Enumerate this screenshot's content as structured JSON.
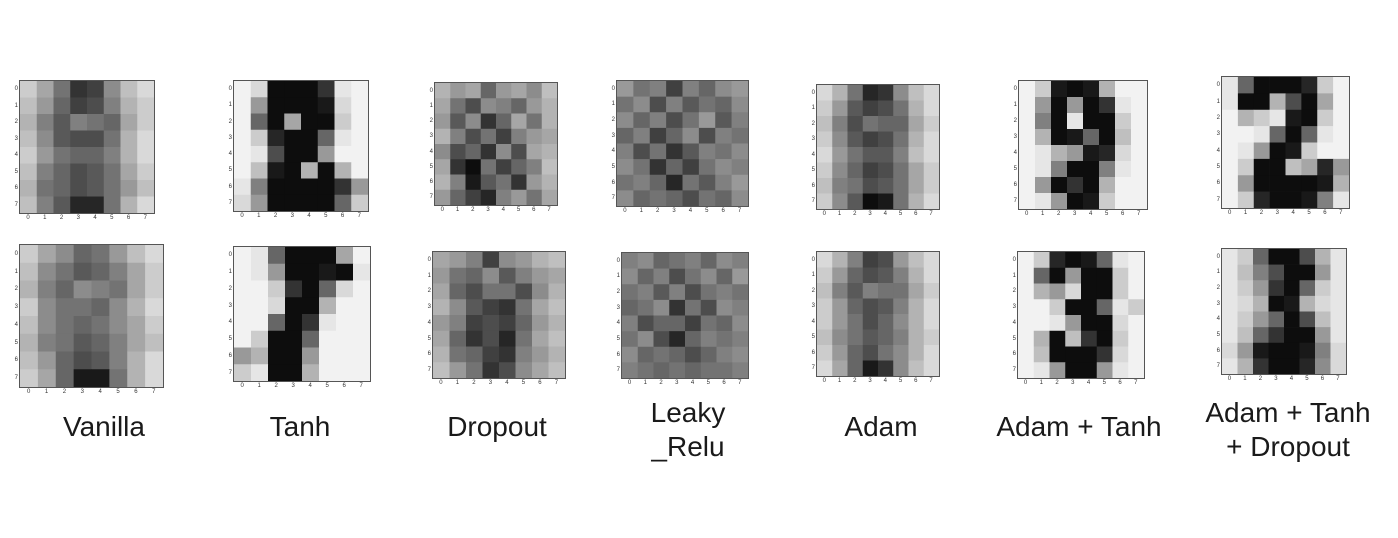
{
  "tick_labels": [
    "0",
    "1",
    "2",
    "3",
    "4",
    "5",
    "6",
    "7"
  ],
  "columns": [
    {
      "label_lines": [
        "Vanilla"
      ],
      "top": [
        [
          20,
          35,
          55,
          80,
          75,
          45,
          25,
          15
        ],
        [
          25,
          40,
          60,
          75,
          70,
          50,
          30,
          20
        ],
        [
          30,
          50,
          65,
          50,
          55,
          60,
          35,
          20
        ],
        [
          25,
          45,
          65,
          70,
          70,
          55,
          30,
          15
        ],
        [
          20,
          40,
          55,
          60,
          60,
          50,
          30,
          15
        ],
        [
          25,
          50,
          60,
          70,
          65,
          55,
          35,
          20
        ],
        [
          30,
          55,
          60,
          70,
          65,
          55,
          40,
          25
        ],
        [
          25,
          50,
          65,
          85,
          85,
          55,
          30,
          15
        ]
      ],
      "bottom": [
        [
          20,
          35,
          45,
          60,
          55,
          40,
          25,
          15
        ],
        [
          25,
          45,
          55,
          65,
          60,
          50,
          35,
          20
        ],
        [
          30,
          50,
          60,
          45,
          50,
          55,
          35,
          20
        ],
        [
          20,
          45,
          55,
          55,
          60,
          45,
          30,
          15
        ],
        [
          25,
          45,
          55,
          60,
          55,
          45,
          35,
          20
        ],
        [
          30,
          50,
          55,
          65,
          60,
          50,
          35,
          25
        ],
        [
          25,
          40,
          60,
          70,
          65,
          50,
          30,
          15
        ],
        [
          20,
          35,
          60,
          90,
          90,
          55,
          30,
          15
        ]
      ]
    },
    {
      "label_lines": [
        "Tanh"
      ],
      "top": [
        [
          5,
          15,
          95,
          95,
          95,
          80,
          10,
          5
        ],
        [
          5,
          40,
          95,
          95,
          95,
          90,
          15,
          5
        ],
        [
          5,
          60,
          95,
          35,
          95,
          95,
          20,
          5
        ],
        [
          5,
          20,
          85,
          95,
          95,
          60,
          10,
          5
        ],
        [
          5,
          10,
          70,
          95,
          95,
          40,
          5,
          5
        ],
        [
          5,
          25,
          90,
          95,
          30,
          95,
          30,
          5
        ],
        [
          10,
          50,
          95,
          95,
          95,
          95,
          80,
          40
        ],
        [
          15,
          40,
          95,
          95,
          95,
          95,
          60,
          20
        ]
      ],
      "bottom": [
        [
          5,
          10,
          60,
          95,
          95,
          95,
          35,
          5
        ],
        [
          5,
          10,
          40,
          95,
          95,
          90,
          95,
          10
        ],
        [
          5,
          5,
          20,
          80,
          95,
          60,
          15,
          5
        ],
        [
          5,
          5,
          15,
          95,
          95,
          30,
          5,
          5
        ],
        [
          5,
          5,
          60,
          95,
          80,
          10,
          5,
          5
        ],
        [
          5,
          20,
          95,
          95,
          60,
          5,
          5,
          5
        ],
        [
          40,
          30,
          95,
          95,
          40,
          5,
          5,
          5
        ],
        [
          20,
          10,
          95,
          95,
          30,
          5,
          5,
          5
        ]
      ]
    },
    {
      "label_lines": [
        "Dropout"
      ],
      "top": [
        [
          30,
          40,
          35,
          60,
          40,
          35,
          45,
          25
        ],
        [
          35,
          55,
          70,
          45,
          50,
          60,
          40,
          30
        ],
        [
          40,
          65,
          45,
          80,
          60,
          35,
          55,
          30
        ],
        [
          30,
          50,
          70,
          55,
          75,
          50,
          40,
          35
        ],
        [
          45,
          70,
          60,
          80,
          45,
          70,
          35,
          30
        ],
        [
          35,
          80,
          95,
          55,
          75,
          60,
          50,
          25
        ],
        [
          30,
          50,
          90,
          65,
          55,
          80,
          40,
          30
        ],
        [
          40,
          60,
          75,
          85,
          50,
          40,
          55,
          35
        ]
      ],
      "bottom": [
        [
          35,
          40,
          50,
          75,
          45,
          40,
          30,
          25
        ],
        [
          40,
          55,
          60,
          45,
          65,
          50,
          40,
          35
        ],
        [
          35,
          60,
          70,
          55,
          55,
          70,
          45,
          30
        ],
        [
          30,
          45,
          65,
          75,
          80,
          55,
          35,
          25
        ],
        [
          40,
          50,
          75,
          70,
          75,
          60,
          40,
          30
        ],
        [
          35,
          60,
          80,
          70,
          85,
          55,
          35,
          25
        ],
        [
          30,
          55,
          60,
          75,
          80,
          50,
          40,
          30
        ],
        [
          25,
          40,
          55,
          80,
          70,
          45,
          35,
          25
        ]
      ]
    },
    {
      "label_lines": [
        "Leaky",
        "_Relu"
      ],
      "top": [
        [
          40,
          55,
          50,
          75,
          50,
          60,
          45,
          40
        ],
        [
          55,
          45,
          70,
          50,
          65,
          55,
          60,
          45
        ],
        [
          45,
          60,
          50,
          70,
          55,
          40,
          65,
          50
        ],
        [
          60,
          50,
          75,
          60,
          45,
          70,
          50,
          55
        ],
        [
          50,
          70,
          55,
          80,
          65,
          50,
          55,
          45
        ],
        [
          45,
          55,
          80,
          60,
          75,
          55,
          45,
          50
        ],
        [
          55,
          50,
          60,
          85,
          55,
          65,
          50,
          40
        ],
        [
          45,
          60,
          55,
          60,
          70,
          55,
          60,
          45
        ]
      ],
      "bottom": [
        [
          50,
          45,
          60,
          55,
          50,
          60,
          45,
          50
        ],
        [
          45,
          60,
          50,
          70,
          55,
          45,
          60,
          40
        ],
        [
          55,
          50,
          65,
          50,
          70,
          55,
          50,
          55
        ],
        [
          60,
          55,
          45,
          80,
          55,
          70,
          45,
          50
        ],
        [
          50,
          70,
          60,
          60,
          75,
          55,
          60,
          45
        ],
        [
          55,
          45,
          70,
          85,
          60,
          50,
          55,
          50
        ],
        [
          45,
          60,
          55,
          60,
          70,
          60,
          50,
          45
        ],
        [
          50,
          55,
          60,
          55,
          60,
          55,
          55,
          50
        ]
      ]
    },
    {
      "label_lines": [
        "Adam"
      ],
      "top": [
        [
          15,
          30,
          55,
          85,
          80,
          45,
          25,
          15
        ],
        [
          20,
          40,
          65,
          75,
          70,
          55,
          30,
          15
        ],
        [
          25,
          50,
          70,
          55,
          60,
          60,
          35,
          20
        ],
        [
          20,
          45,
          65,
          75,
          70,
          55,
          30,
          15
        ],
        [
          15,
          40,
          55,
          65,
          65,
          50,
          25,
          15
        ],
        [
          20,
          45,
          60,
          75,
          70,
          55,
          35,
          20
        ],
        [
          25,
          50,
          55,
          70,
          65,
          55,
          35,
          20
        ],
        [
          20,
          45,
          65,
          95,
          90,
          55,
          30,
          15
        ]
      ],
      "bottom": [
        [
          15,
          30,
          50,
          75,
          70,
          40,
          25,
          15
        ],
        [
          20,
          40,
          60,
          70,
          65,
          50,
          30,
          15
        ],
        [
          25,
          50,
          65,
          50,
          55,
          55,
          35,
          20
        ],
        [
          20,
          40,
          60,
          70,
          65,
          50,
          30,
          15
        ],
        [
          20,
          40,
          55,
          70,
          60,
          45,
          30,
          15
        ],
        [
          25,
          45,
          55,
          65,
          60,
          50,
          30,
          20
        ],
        [
          20,
          40,
          60,
          70,
          55,
          45,
          30,
          15
        ],
        [
          15,
          35,
          60,
          90,
          80,
          45,
          25,
          15
        ]
      ]
    },
    {
      "label_lines": [
        "Adam + Tanh"
      ],
      "top": [
        [
          5,
          20,
          90,
          95,
          90,
          30,
          5,
          5
        ],
        [
          5,
          40,
          95,
          40,
          95,
          80,
          10,
          5
        ],
        [
          5,
          50,
          95,
          10,
          95,
          95,
          20,
          5
        ],
        [
          5,
          30,
          95,
          90,
          60,
          95,
          25,
          5
        ],
        [
          5,
          10,
          30,
          40,
          90,
          85,
          15,
          5
        ],
        [
          5,
          10,
          50,
          95,
          95,
          50,
          10,
          5
        ],
        [
          5,
          40,
          95,
          80,
          95,
          30,
          5,
          5
        ],
        [
          5,
          10,
          40,
          95,
          90,
          20,
          5,
          5
        ]
      ],
      "bottom": [
        [
          5,
          20,
          85,
          95,
          90,
          60,
          10,
          5
        ],
        [
          5,
          60,
          95,
          40,
          95,
          95,
          20,
          5
        ],
        [
          5,
          30,
          40,
          15,
          95,
          95,
          20,
          5
        ],
        [
          5,
          5,
          20,
          95,
          95,
          60,
          10,
          20
        ],
        [
          5,
          5,
          10,
          40,
          95,
          95,
          15,
          5
        ],
        [
          5,
          30,
          95,
          25,
          80,
          95,
          20,
          5
        ],
        [
          5,
          25,
          95,
          95,
          95,
          80,
          15,
          5
        ],
        [
          5,
          10,
          40,
          95,
          95,
          40,
          10,
          5
        ]
      ]
    },
    {
      "label_lines": [
        "Adam + Tanh",
        "+ Dropout"
      ],
      "top": [
        [
          10,
          60,
          95,
          95,
          95,
          85,
          20,
          5
        ],
        [
          10,
          95,
          95,
          30,
          70,
          95,
          35,
          5
        ],
        [
          5,
          30,
          20,
          10,
          90,
          95,
          20,
          5
        ],
        [
          5,
          5,
          10,
          60,
          95,
          60,
          10,
          5
        ],
        [
          5,
          10,
          40,
          95,
          90,
          20,
          5,
          5
        ],
        [
          5,
          20,
          95,
          95,
          25,
          35,
          85,
          40
        ],
        [
          5,
          40,
          95,
          95,
          95,
          95,
          90,
          30
        ],
        [
          5,
          20,
          85,
          95,
          95,
          90,
          50,
          10
        ]
      ],
      "bottom": [
        [
          10,
          20,
          60,
          95,
          95,
          70,
          30,
          10
        ],
        [
          10,
          25,
          50,
          70,
          95,
          95,
          40,
          10
        ],
        [
          10,
          20,
          40,
          80,
          95,
          60,
          20,
          10
        ],
        [
          10,
          15,
          30,
          95,
          90,
          30,
          15,
          10
        ],
        [
          10,
          20,
          40,
          60,
          95,
          70,
          25,
          10
        ],
        [
          10,
          25,
          60,
          80,
          95,
          95,
          40,
          10
        ],
        [
          15,
          40,
          90,
          95,
          95,
          90,
          50,
          15
        ],
        [
          10,
          30,
          80,
          95,
          95,
          85,
          45,
          15
        ]
      ]
    }
  ]
}
